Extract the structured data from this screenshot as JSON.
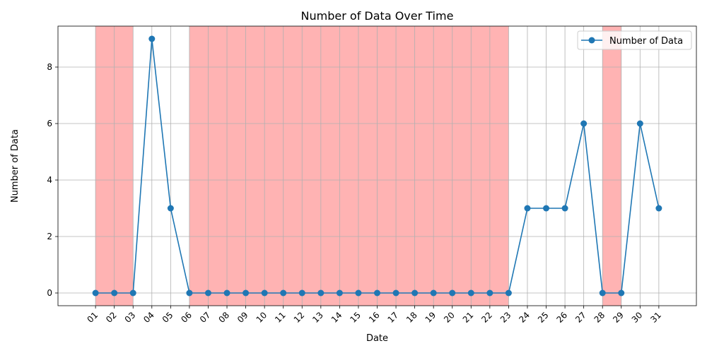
{
  "chart_data": {
    "type": "line",
    "title": "Number of Data Over Time",
    "xlabel": "Date",
    "ylabel": "Number of Data",
    "categories": [
      "01",
      "02",
      "03",
      "04",
      "05",
      "06",
      "07",
      "08",
      "09",
      "10",
      "11",
      "12",
      "13",
      "14",
      "15",
      "16",
      "17",
      "18",
      "19",
      "20",
      "21",
      "22",
      "23",
      "24",
      "25",
      "26",
      "27",
      "28",
      "29",
      "30",
      "31"
    ],
    "series": [
      {
        "name": "Number of Data",
        "color": "#1f77b4",
        "values": [
          0,
          0,
          0,
          9,
          3,
          0,
          0,
          0,
          0,
          0,
          0,
          0,
          0,
          0,
          0,
          0,
          0,
          0,
          0,
          0,
          0,
          0,
          0,
          3,
          3,
          3,
          6,
          0,
          0,
          6,
          3
        ]
      }
    ],
    "ylim": [
      -0.45,
      9.45
    ],
    "yticks": [
      0,
      2,
      4,
      6,
      8
    ],
    "shaded_ranges": [
      [
        "01",
        "03"
      ],
      [
        "06",
        "23"
      ],
      [
        "28",
        "29"
      ]
    ],
    "shade_color": "#ffb3b3",
    "grid": true,
    "legend_position": "top-right"
  }
}
